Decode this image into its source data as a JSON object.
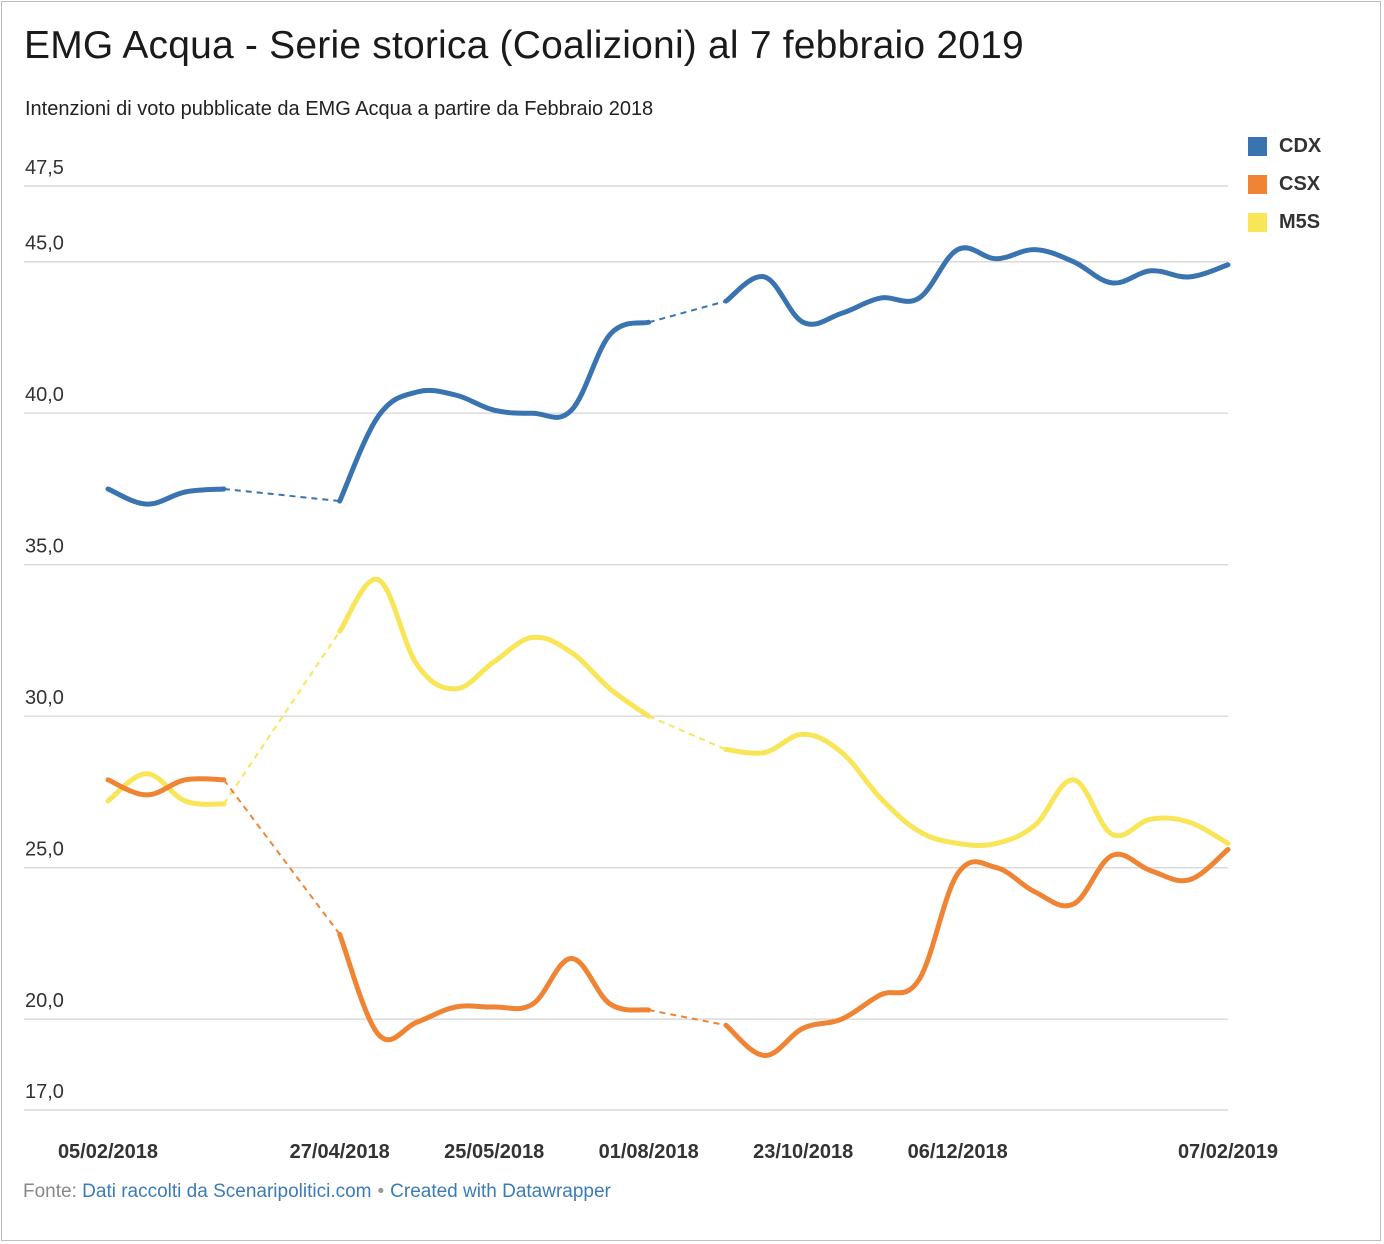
{
  "title": "EMG Acqua - Serie storica (Coalizioni) al 7 febbraio 2019",
  "subtitle": "Intenzioni di voto pubblicate da EMG Acqua a partire da Febbraio 2018",
  "footer": {
    "prefix": "Fonte:",
    "source": "Dati raccolti da Scenaripolitici.com",
    "separator": "•",
    "credit": "Created with Datawrapper"
  },
  "colors": {
    "CDX": "#3a74b0",
    "CSX": "#ef8534",
    "M5S": "#f9e558",
    "grid": "#d9d9d9",
    "link": "#3b7cb8"
  },
  "chart_data": {
    "type": "line",
    "title": "EMG Acqua - Serie storica (Coalizioni) al 7 febbraio 2019",
    "xlabel": "",
    "ylabel": "",
    "ylim": [
      17.0,
      47.5
    ],
    "yticks": [
      "47,5",
      "45,0",
      "40,0",
      "35,0",
      "30,0",
      "25,0",
      "20,0",
      "17,0"
    ],
    "ytick_values": [
      47.5,
      45.0,
      40.0,
      35.0,
      30.0,
      25.0,
      20.0,
      17.0
    ],
    "x_tick_labels": [
      {
        "index": 0,
        "label": "05/02/2018"
      },
      {
        "index": 6,
        "label": "27/04/2018"
      },
      {
        "index": 10,
        "label": "25/05/2018"
      },
      {
        "index": 14,
        "label": "01/08/2018"
      },
      {
        "index": 18,
        "label": "23/10/2018"
      },
      {
        "index": 22,
        "label": "06/12/2018"
      },
      {
        "index": 29,
        "label": "07/02/2019"
      }
    ],
    "n_points": 30,
    "grid": true,
    "legend": "top-right",
    "series": [
      {
        "name": "CDX",
        "values": [
          37.5,
          37.0,
          37.4,
          37.5,
          null,
          null,
          37.1,
          39.9,
          40.7,
          40.6,
          40.1,
          40.0,
          40.1,
          42.6,
          43.0,
          null,
          43.7,
          44.5,
          43.0,
          43.3,
          43.8,
          43.8,
          45.4,
          45.1,
          45.4,
          45.0,
          44.3,
          44.7,
          44.5,
          44.9
        ],
        "gap_connectors": [
          [
            3,
            6
          ],
          [
            14,
            16
          ]
        ]
      },
      {
        "name": "CSX",
        "values": [
          27.9,
          27.4,
          27.9,
          27.9,
          null,
          null,
          22.8,
          19.5,
          19.9,
          20.4,
          20.4,
          20.5,
          22.0,
          20.5,
          20.3,
          null,
          19.8,
          18.8,
          19.7,
          20.0,
          20.8,
          21.3,
          24.8,
          25.0,
          24.2,
          23.8,
          25.4,
          24.9,
          24.6,
          25.6
        ],
        "gap_connectors": [
          [
            3,
            6
          ],
          [
            14,
            16
          ]
        ]
      },
      {
        "name": "M5S",
        "values": [
          27.2,
          28.1,
          27.2,
          27.1,
          null,
          null,
          32.8,
          34.5,
          31.7,
          30.9,
          31.8,
          32.6,
          32.1,
          30.9,
          30.0,
          null,
          28.9,
          28.8,
          29.4,
          28.8,
          27.3,
          26.2,
          25.8,
          25.8,
          26.4,
          27.9,
          26.1,
          26.6,
          26.5,
          25.8
        ],
        "gap_connectors": [
          [
            3,
            6
          ],
          [
            14,
            16
          ]
        ]
      }
    ]
  }
}
